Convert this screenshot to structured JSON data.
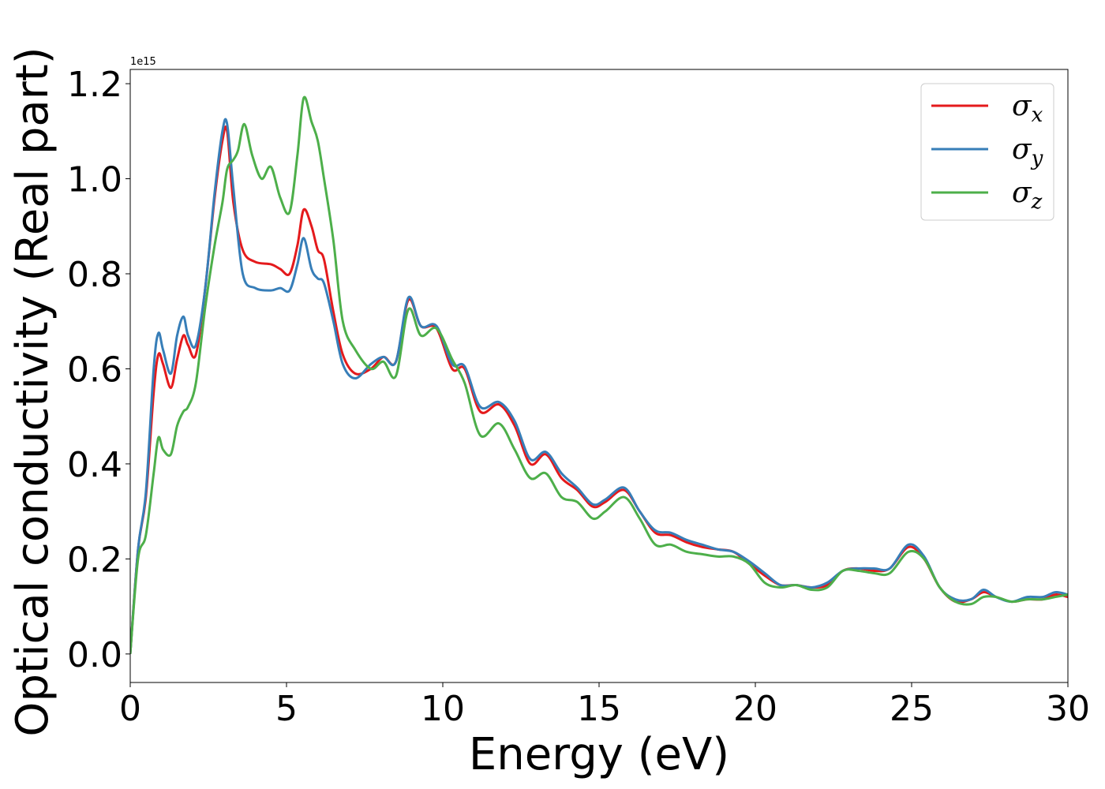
{
  "chart_data": {
    "type": "line",
    "xlabel": "Energy (eV)",
    "ylabel": "Optical conductivity (Real part)",
    "y_offset_label": "1e15",
    "xlim": [
      0,
      30
    ],
    "ylim": [
      -0.06,
      1.23
    ],
    "x_ticks": [
      0,
      5,
      10,
      15,
      20,
      25,
      30
    ],
    "x_tick_labels": [
      "0",
      "5",
      "10",
      "15",
      "20",
      "25",
      "30"
    ],
    "y_ticks": [
      0.0,
      0.2,
      0.4,
      0.6,
      0.8,
      1.0,
      1.2
    ],
    "y_tick_labels": [
      "0.0",
      "0.2",
      "0.4",
      "0.6",
      "0.8",
      "1.0",
      "1.2"
    ],
    "grid": false,
    "legend_position": "top-right",
    "series": [
      {
        "name": "σx",
        "symbol": "σ",
        "subscript": "x",
        "color": "#e41a1c",
        "x": [
          0,
          0.25,
          0.5,
          0.75,
          0.9,
          1.05,
          1.3,
          1.5,
          1.7,
          1.85,
          2.1,
          2.4,
          2.7,
          2.95,
          3.1,
          3.3,
          3.6,
          4,
          4.5,
          4.8,
          5.1,
          5.35,
          5.55,
          5.8,
          6,
          6.2,
          6.5,
          6.8,
          7.2,
          7.7,
          8.1,
          8.5,
          8.9,
          9.3,
          9.8,
          10.3,
          10.7,
          11.2,
          11.8,
          12.3,
          12.8,
          13.3,
          13.8,
          14.3,
          14.8,
          15.2,
          15.8,
          16.3,
          16.8,
          17.3,
          17.8,
          18.3,
          18.8,
          19.3,
          19.8,
          20.3,
          20.8,
          21.3,
          21.8,
          22.3,
          22.8,
          23.3,
          23.8,
          24.3,
          24.9,
          25.4,
          25.9,
          26.4,
          26.9,
          27.3,
          27.7,
          28.2,
          28.7,
          29.2,
          29.6,
          30
        ],
        "y": [
          0,
          0.22,
          0.33,
          0.55,
          0.63,
          0.61,
          0.56,
          0.62,
          0.67,
          0.65,
          0.63,
          0.77,
          0.96,
          1.08,
          1.1,
          0.95,
          0.85,
          0.825,
          0.82,
          0.81,
          0.8,
          0.86,
          0.935,
          0.9,
          0.85,
          0.83,
          0.72,
          0.63,
          0.59,
          0.6,
          0.625,
          0.615,
          0.745,
          0.69,
          0.685,
          0.6,
          0.6,
          0.51,
          0.525,
          0.48,
          0.4,
          0.42,
          0.37,
          0.345,
          0.31,
          0.32,
          0.345,
          0.3,
          0.255,
          0.25,
          0.235,
          0.225,
          0.22,
          0.215,
          0.19,
          0.165,
          0.145,
          0.145,
          0.14,
          0.145,
          0.175,
          0.18,
          0.175,
          0.18,
          0.225,
          0.2,
          0.14,
          0.11,
          0.115,
          0.13,
          0.12,
          0.11,
          0.115,
          0.115,
          0.125,
          0.12
        ]
      },
      {
        "name": "σy",
        "symbol": "σ",
        "subscript": "y",
        "color": "#377eb8",
        "x": [
          0,
          0.25,
          0.5,
          0.75,
          0.9,
          1.05,
          1.3,
          1.5,
          1.7,
          1.85,
          2.1,
          2.4,
          2.7,
          2.95,
          3.1,
          3.3,
          3.6,
          4,
          4.5,
          4.8,
          5.1,
          5.35,
          5.55,
          5.8,
          6,
          6.2,
          6.5,
          6.8,
          7.2,
          7.7,
          8.1,
          8.5,
          8.9,
          9.3,
          9.8,
          10.3,
          10.7,
          11.2,
          11.8,
          12.3,
          12.8,
          13.3,
          13.8,
          14.3,
          14.8,
          15.2,
          15.8,
          16.3,
          16.8,
          17.3,
          17.8,
          18.3,
          18.8,
          19.3,
          19.8,
          20.3,
          20.8,
          21.3,
          21.8,
          22.3,
          22.8,
          23.3,
          23.8,
          24.3,
          24.9,
          25.4,
          25.9,
          26.4,
          26.9,
          27.3,
          27.7,
          28.2,
          28.7,
          29.2,
          29.6,
          30
        ],
        "y": [
          0,
          0.22,
          0.34,
          0.6,
          0.675,
          0.64,
          0.59,
          0.67,
          0.71,
          0.67,
          0.65,
          0.77,
          0.97,
          1.1,
          1.115,
          0.98,
          0.8,
          0.77,
          0.765,
          0.77,
          0.765,
          0.82,
          0.875,
          0.81,
          0.79,
          0.78,
          0.7,
          0.61,
          0.58,
          0.61,
          0.625,
          0.615,
          0.75,
          0.69,
          0.69,
          0.61,
          0.605,
          0.52,
          0.53,
          0.49,
          0.41,
          0.425,
          0.38,
          0.35,
          0.315,
          0.325,
          0.35,
          0.3,
          0.26,
          0.255,
          0.24,
          0.23,
          0.22,
          0.215,
          0.195,
          0.17,
          0.145,
          0.145,
          0.14,
          0.15,
          0.175,
          0.18,
          0.18,
          0.18,
          0.23,
          0.205,
          0.14,
          0.115,
          0.115,
          0.135,
          0.12,
          0.11,
          0.12,
          0.12,
          0.13,
          0.125
        ]
      },
      {
        "name": "σz",
        "symbol": "σ",
        "subscript": "z",
        "color": "#4daf4a",
        "x": [
          0,
          0.25,
          0.5,
          0.75,
          0.9,
          1.05,
          1.3,
          1.5,
          1.7,
          1.85,
          2.1,
          2.4,
          2.7,
          2.95,
          3.1,
          3.3,
          3.45,
          3.65,
          3.9,
          4.2,
          4.5,
          4.8,
          5.1,
          5.35,
          5.55,
          5.8,
          6,
          6.2,
          6.5,
          6.8,
          7.2,
          7.7,
          8.1,
          8.5,
          8.9,
          9.3,
          9.8,
          10.3,
          10.7,
          11.2,
          11.8,
          12.3,
          12.8,
          13.3,
          13.8,
          14.3,
          14.8,
          15.2,
          15.8,
          16.3,
          16.8,
          17.3,
          17.8,
          18.3,
          18.8,
          19.3,
          19.8,
          20.3,
          20.8,
          21.3,
          21.8,
          22.3,
          22.8,
          23.3,
          23.8,
          24.3,
          24.9,
          25.4,
          25.9,
          26.4,
          26.9,
          27.3,
          27.7,
          28.2,
          28.7,
          29.2,
          29.6,
          30
        ],
        "y": [
          0,
          0.2,
          0.25,
          0.38,
          0.455,
          0.43,
          0.42,
          0.48,
          0.51,
          0.52,
          0.57,
          0.73,
          0.86,
          0.95,
          1.02,
          1.04,
          1.06,
          1.115,
          1.05,
          1.0,
          1.025,
          0.96,
          0.93,
          1.05,
          1.17,
          1.12,
          1.08,
          1.0,
          0.87,
          0.7,
          0.64,
          0.6,
          0.615,
          0.585,
          0.725,
          0.67,
          0.685,
          0.62,
          0.57,
          0.46,
          0.485,
          0.43,
          0.37,
          0.38,
          0.33,
          0.32,
          0.285,
          0.3,
          0.33,
          0.285,
          0.23,
          0.23,
          0.215,
          0.21,
          0.205,
          0.205,
          0.19,
          0.15,
          0.14,
          0.145,
          0.135,
          0.14,
          0.175,
          0.175,
          0.17,
          0.17,
          0.215,
          0.2,
          0.14,
          0.11,
          0.105,
          0.12,
          0.12,
          0.11,
          0.115,
          0.115,
          0.12,
          0.125
        ]
      }
    ]
  }
}
